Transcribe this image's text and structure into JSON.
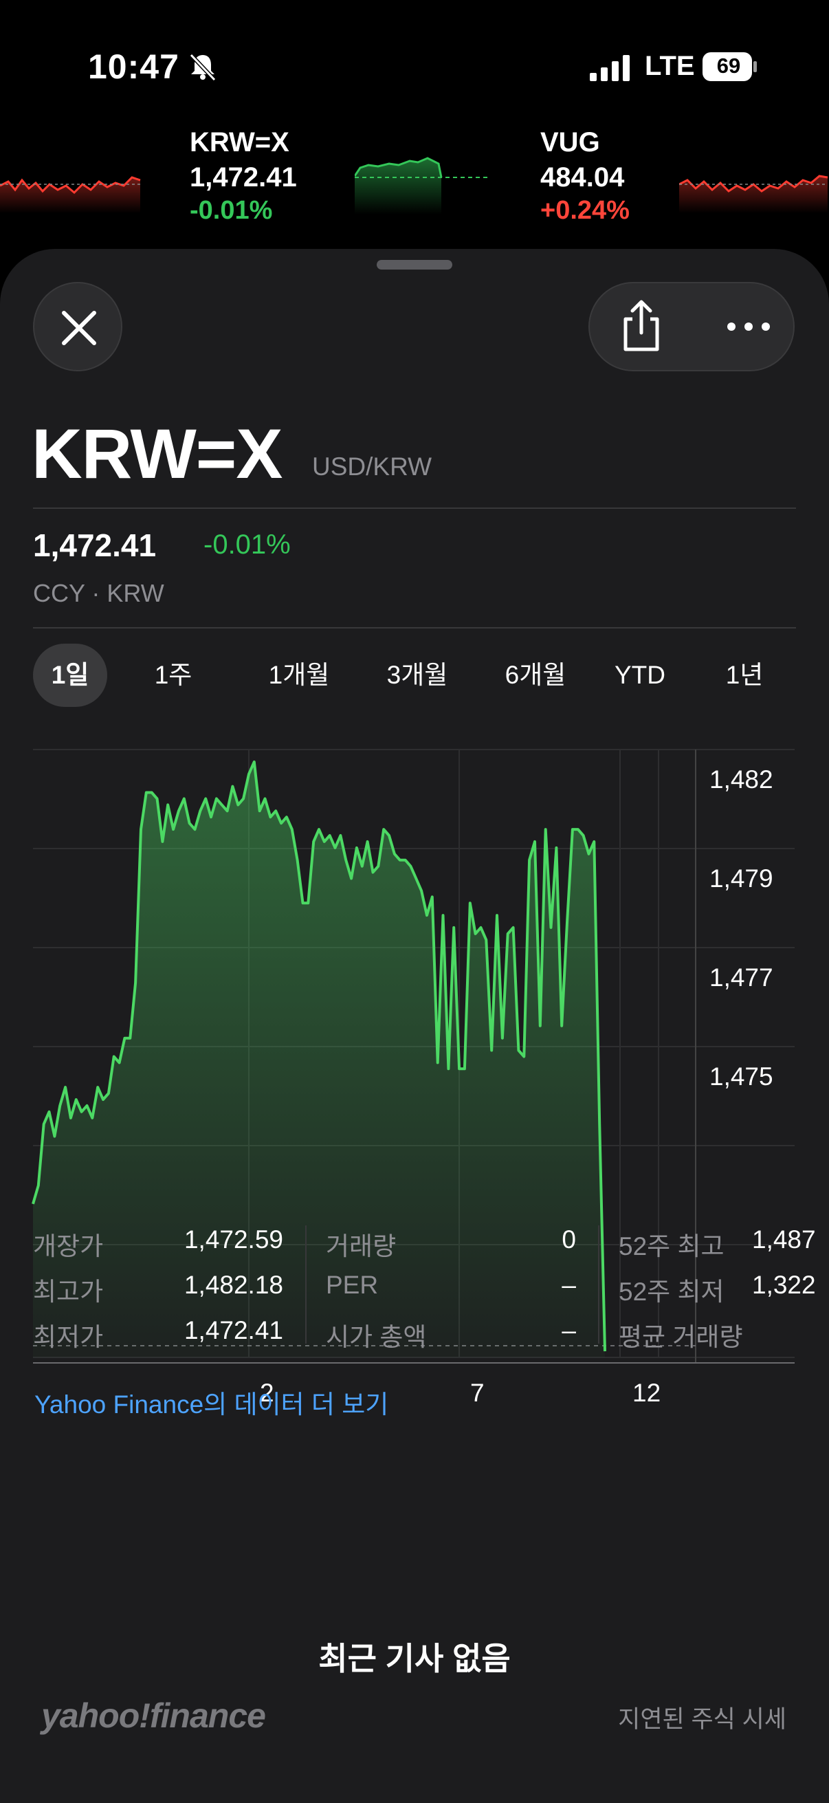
{
  "status_bar": {
    "time": "10:47",
    "network": "LTE",
    "battery": "69"
  },
  "tickers": [
    {
      "symbol": "KRW=X",
      "price": "1,472.41",
      "change": "-0.01%",
      "change_color": "#34c759"
    },
    {
      "symbol": "VUG",
      "price": "484.04",
      "change": "+0.24%",
      "change_color": "#ff453a"
    }
  ],
  "header": {
    "symbol": "KRW=X",
    "pair": "USD/KRW"
  },
  "quote": {
    "price": "1,472.41",
    "change": "-0.01%",
    "meta": "CCY · KRW"
  },
  "ranges": [
    "1일",
    "1주",
    "1개월",
    "3개월",
    "6개월",
    "YTD",
    "1년"
  ],
  "active_range": "1일",
  "chart_data": {
    "type": "area",
    "line_color": "#4cd964",
    "x_tick_labels": [
      "2",
      "7",
      "12"
    ],
    "y_tick_labels": [
      "1,482",
      "1,479",
      "1,477",
      "1,475"
    ],
    "ylim": [
      1472.4,
      1482.3
    ],
    "reference_line": 1472.59,
    "grid": true,
    "series": [
      {
        "values": [
          1474.9,
          1475.2,
          1476.2,
          1476.4,
          1476.0,
          1476.5,
          1476.8,
          1476.3,
          1476.6,
          1476.4,
          1476.5,
          1476.3,
          1476.8,
          1476.6,
          1476.7,
          1477.3,
          1477.2,
          1477.6,
          1477.6,
          1478.5,
          1481.0,
          1481.6,
          1481.6,
          1481.5,
          1480.8,
          1481.4,
          1481.0,
          1481.3,
          1481.5,
          1481.1,
          1481.0,
          1481.3,
          1481.5,
          1481.2,
          1481.5,
          1481.4,
          1481.3,
          1481.7,
          1481.4,
          1481.5,
          1481.9,
          1482.1,
          1481.3,
          1481.5,
          1481.2,
          1481.3,
          1481.1,
          1481.2,
          1481.0,
          1480.5,
          1479.8,
          1479.8,
          1480.8,
          1481.0,
          1480.8,
          1480.9,
          1480.7,
          1480.9,
          1480.5,
          1480.2,
          1480.7,
          1480.4,
          1480.8,
          1480.3,
          1480.4,
          1481.0,
          1480.9,
          1480.6,
          1480.5,
          1480.5,
          1480.4,
          1480.2,
          1480.0,
          1479.6,
          1479.9,
          1477.2,
          1479.6,
          1477.1,
          1479.4,
          1477.1,
          1477.1,
          1479.8,
          1479.3,
          1479.4,
          1479.2,
          1477.4,
          1479.6,
          1477.6,
          1479.3,
          1479.4,
          1477.4,
          1477.3,
          1480.5,
          1480.8,
          1477.8,
          1481.0,
          1479.4,
          1480.7,
          1477.8,
          1479.5,
          1481.0,
          1481.0,
          1480.9,
          1480.6,
          1480.8,
          1476.2,
          1472.5
        ]
      }
    ]
  },
  "stats": {
    "col1": [
      {
        "label": "개장가",
        "value": "1,472.59"
      },
      {
        "label": "최고가",
        "value": "1,482.18"
      },
      {
        "label": "최저가",
        "value": "1,472.41"
      }
    ],
    "col2": [
      {
        "label": "거래량",
        "value": "0"
      },
      {
        "label": "PER",
        "value": "–"
      },
      {
        "label": "시가 총액",
        "value": "–"
      }
    ],
    "col3": [
      {
        "label": "52주 최고",
        "value": "1,487"
      },
      {
        "label": "52주 최저",
        "value": "1,322"
      },
      {
        "label": "평균 거래량",
        "value": ""
      }
    ]
  },
  "more_link": "Yahoo Finance의 데이터 더 보기",
  "no_news": "최근 기사 없음",
  "footer": {
    "logo": "yahoo!finance",
    "delayed": "지연된 주식 시세"
  },
  "icons": [
    "bell-slash-icon",
    "signal-icon",
    "battery-icon",
    "close-icon",
    "share-icon",
    "more-icon"
  ]
}
